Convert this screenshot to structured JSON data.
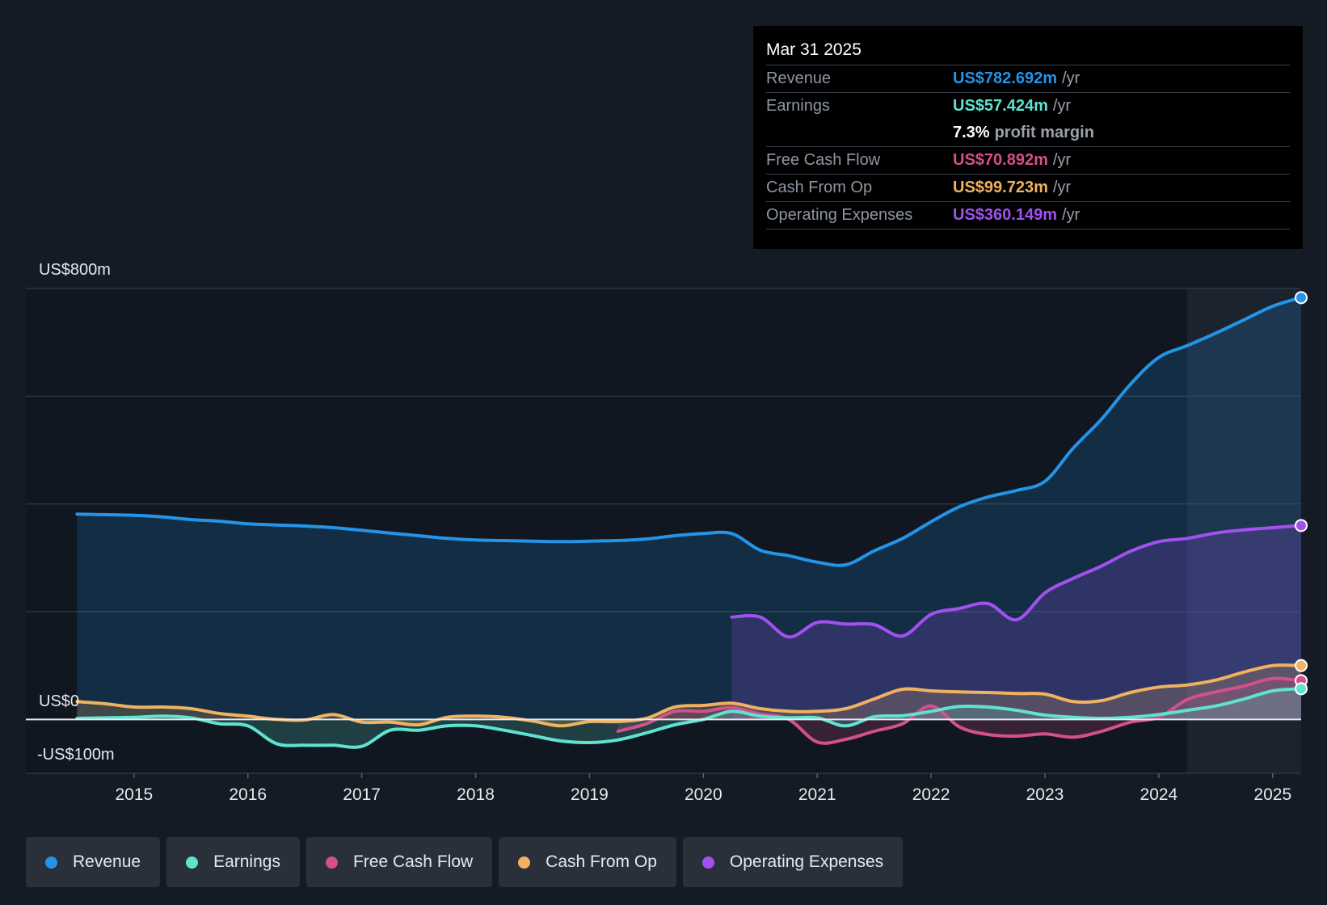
{
  "tooltip": {
    "date": "Mar 31 2025",
    "rows": {
      "revenue": {
        "label": "Revenue",
        "value": "US$782.692m",
        "unit": "/yr",
        "color": "#2394e8"
      },
      "earnings": {
        "label": "Earnings",
        "value": "US$57.424m",
        "unit": "/yr",
        "color": "#5fe3d0"
      },
      "margin": {
        "pct": "7.3%",
        "text": "profit margin"
      },
      "fcf": {
        "label": "Free Cash Flow",
        "value": "US$70.892m",
        "unit": "/yr",
        "color": "#d4508a"
      },
      "cfo": {
        "label": "Cash From Op",
        "value": "US$99.723m",
        "unit": "/yr",
        "color": "#f0b25e"
      },
      "opex": {
        "label": "Operating Expenses",
        "value": "US$360.149m",
        "unit": "/yr",
        "color": "#a251f0"
      }
    }
  },
  "legend": [
    {
      "label": "Revenue",
      "color": "#2394e8"
    },
    {
      "label": "Earnings",
      "color": "#5fe3d0"
    },
    {
      "label": "Free Cash Flow",
      "color": "#d4508a"
    },
    {
      "label": "Cash From Op",
      "color": "#f0b25e"
    },
    {
      "label": "Operating Expenses",
      "color": "#a251f0"
    }
  ],
  "chart_data": {
    "type": "line",
    "title": "",
    "xlabel": "",
    "ylabel": "",
    "y_axis_labels": {
      "top": "US$800m",
      "zero": "US$0",
      "bottom": "-US$100m"
    },
    "ylim": [
      -100,
      800
    ],
    "xlim": [
      2014.05,
      2025.25
    ],
    "x_ticks": [
      2015,
      2016,
      2017,
      2018,
      2019,
      2020,
      2021,
      2022,
      2023,
      2024,
      2025
    ],
    "gridlines_y": [
      800,
      600,
      400,
      200
    ],
    "forecast_shade_from": 2024.25,
    "series": [
      {
        "name": "Revenue",
        "key": "revenue",
        "color": "#2394e8",
        "fill": "area",
        "points": [
          [
            2014.5,
            381
          ],
          [
            2015,
            379
          ],
          [
            2015.25,
            376
          ],
          [
            2015.5,
            371
          ],
          [
            2015.75,
            368
          ],
          [
            2016,
            363
          ],
          [
            2016.25,
            361
          ],
          [
            2016.5,
            359
          ],
          [
            2016.75,
            356
          ],
          [
            2017,
            351
          ],
          [
            2017.25,
            346
          ],
          [
            2017.5,
            341
          ],
          [
            2017.75,
            336
          ],
          [
            2018,
            333
          ],
          [
            2018.25,
            332
          ],
          [
            2018.5,
            331
          ],
          [
            2018.75,
            330
          ],
          [
            2019,
            331
          ],
          [
            2019.25,
            332
          ],
          [
            2019.5,
            335
          ],
          [
            2019.75,
            341
          ],
          [
            2020,
            345
          ],
          [
            2020.25,
            345
          ],
          [
            2020.5,
            314
          ],
          [
            2020.75,
            304
          ],
          [
            2021,
            292
          ],
          [
            2021.25,
            287
          ],
          [
            2021.5,
            313
          ],
          [
            2021.75,
            336
          ],
          [
            2022,
            367
          ],
          [
            2022.25,
            395
          ],
          [
            2022.5,
            413
          ],
          [
            2022.75,
            425
          ],
          [
            2023,
            442
          ],
          [
            2023.25,
            504
          ],
          [
            2023.5,
            558
          ],
          [
            2023.75,
            622
          ],
          [
            2024,
            672
          ],
          [
            2024.25,
            694
          ],
          [
            2024.5,
            717
          ],
          [
            2024.75,
            742
          ],
          [
            2025,
            767
          ],
          [
            2025.25,
            783
          ]
        ]
      },
      {
        "name": "Operating Expenses",
        "key": "opex",
        "color": "#a251f0",
        "fill": "area",
        "points": [
          [
            2020.25,
            190
          ],
          [
            2020.5,
            190
          ],
          [
            2020.75,
            153
          ],
          [
            2021,
            180
          ],
          [
            2021.25,
            177
          ],
          [
            2021.5,
            176
          ],
          [
            2021.75,
            155
          ],
          [
            2022,
            195
          ],
          [
            2022.25,
            206
          ],
          [
            2022.5,
            215
          ],
          [
            2022.75,
            185
          ],
          [
            2023,
            235
          ],
          [
            2023.25,
            262
          ],
          [
            2023.5,
            285
          ],
          [
            2023.75,
            312
          ],
          [
            2024,
            330
          ],
          [
            2024.25,
            336
          ],
          [
            2024.5,
            346
          ],
          [
            2024.75,
            352
          ],
          [
            2025,
            356
          ],
          [
            2025.25,
            360
          ]
        ]
      },
      {
        "name": "Cash From Op",
        "key": "cfo",
        "color": "#f0b25e",
        "fill": "area",
        "points": [
          [
            2014.5,
            33
          ],
          [
            2014.75,
            29
          ],
          [
            2015,
            23
          ],
          [
            2015.25,
            23
          ],
          [
            2015.5,
            20
          ],
          [
            2015.75,
            11
          ],
          [
            2016,
            6
          ],
          [
            2016.25,
            0
          ],
          [
            2016.5,
            -1
          ],
          [
            2016.75,
            9
          ],
          [
            2017,
            -5
          ],
          [
            2017.25,
            -5
          ],
          [
            2017.5,
            -10
          ],
          [
            2017.75,
            4
          ],
          [
            2018,
            6
          ],
          [
            2018.25,
            4
          ],
          [
            2018.5,
            -3
          ],
          [
            2018.75,
            -12
          ],
          [
            2019,
            -4
          ],
          [
            2019.25,
            -4
          ],
          [
            2019.5,
            2
          ],
          [
            2019.75,
            23
          ],
          [
            2020,
            26
          ],
          [
            2020.25,
            30
          ],
          [
            2020.5,
            20
          ],
          [
            2020.75,
            15
          ],
          [
            2021,
            15
          ],
          [
            2021.25,
            20
          ],
          [
            2021.5,
            38
          ],
          [
            2021.75,
            56
          ],
          [
            2022,
            53
          ],
          [
            2022.25,
            51
          ],
          [
            2022.5,
            50
          ],
          [
            2022.75,
            48
          ],
          [
            2023,
            47
          ],
          [
            2023.25,
            33
          ],
          [
            2023.5,
            35
          ],
          [
            2023.75,
            50
          ],
          [
            2024,
            60
          ],
          [
            2024.25,
            64
          ],
          [
            2024.5,
            73
          ],
          [
            2024.75,
            88
          ],
          [
            2025,
            100
          ],
          [
            2025.25,
            100
          ]
        ]
      },
      {
        "name": "Free Cash Flow",
        "key": "fcf",
        "color": "#d4508a",
        "fill": "area",
        "points": [
          [
            2019.25,
            -22
          ],
          [
            2019.5,
            -8
          ],
          [
            2019.75,
            15
          ],
          [
            2020,
            15
          ],
          [
            2020.25,
            22
          ],
          [
            2020.5,
            10
          ],
          [
            2020.75,
            0
          ],
          [
            2021,
            -42
          ],
          [
            2021.25,
            -37
          ],
          [
            2021.5,
            -22
          ],
          [
            2021.75,
            -8
          ],
          [
            2022,
            25
          ],
          [
            2022.25,
            -14
          ],
          [
            2022.5,
            -28
          ],
          [
            2022.75,
            -31
          ],
          [
            2023,
            -27
          ],
          [
            2023.25,
            -33
          ],
          [
            2023.5,
            -22
          ],
          [
            2023.75,
            -5
          ],
          [
            2024,
            4
          ],
          [
            2024.25,
            37
          ],
          [
            2024.5,
            51
          ],
          [
            2024.75,
            62
          ],
          [
            2025,
            76
          ],
          [
            2025.25,
            72
          ]
        ]
      },
      {
        "name": "Earnings",
        "key": "earnings",
        "color": "#5fe3d0",
        "fill": "area",
        "points": [
          [
            2014.5,
            2
          ],
          [
            2015,
            4
          ],
          [
            2015.25,
            6
          ],
          [
            2015.5,
            3
          ],
          [
            2015.75,
            -8
          ],
          [
            2016,
            -12
          ],
          [
            2016.25,
            -45
          ],
          [
            2016.5,
            -48
          ],
          [
            2016.75,
            -48
          ],
          [
            2017,
            -50
          ],
          [
            2017.25,
            -20
          ],
          [
            2017.5,
            -20
          ],
          [
            2017.75,
            -12
          ],
          [
            2018,
            -12
          ],
          [
            2018.25,
            -20
          ],
          [
            2018.5,
            -30
          ],
          [
            2018.75,
            -40
          ],
          [
            2019,
            -43
          ],
          [
            2019.25,
            -38
          ],
          [
            2019.5,
            -25
          ],
          [
            2019.75,
            -10
          ],
          [
            2020,
            0
          ],
          [
            2020.25,
            15
          ],
          [
            2020.5,
            6
          ],
          [
            2020.75,
            3
          ],
          [
            2021,
            3
          ],
          [
            2021.25,
            -12
          ],
          [
            2021.5,
            5
          ],
          [
            2021.75,
            7
          ],
          [
            2022,
            15
          ],
          [
            2022.25,
            24
          ],
          [
            2022.5,
            23
          ],
          [
            2022.75,
            17
          ],
          [
            2023,
            8
          ],
          [
            2023.25,
            4
          ],
          [
            2023.5,
            2
          ],
          [
            2023.75,
            4
          ],
          [
            2024,
            9
          ],
          [
            2024.25,
            17
          ],
          [
            2024.5,
            25
          ],
          [
            2024.75,
            38
          ],
          [
            2025,
            53
          ],
          [
            2025.25,
            57
          ]
        ]
      }
    ]
  }
}
